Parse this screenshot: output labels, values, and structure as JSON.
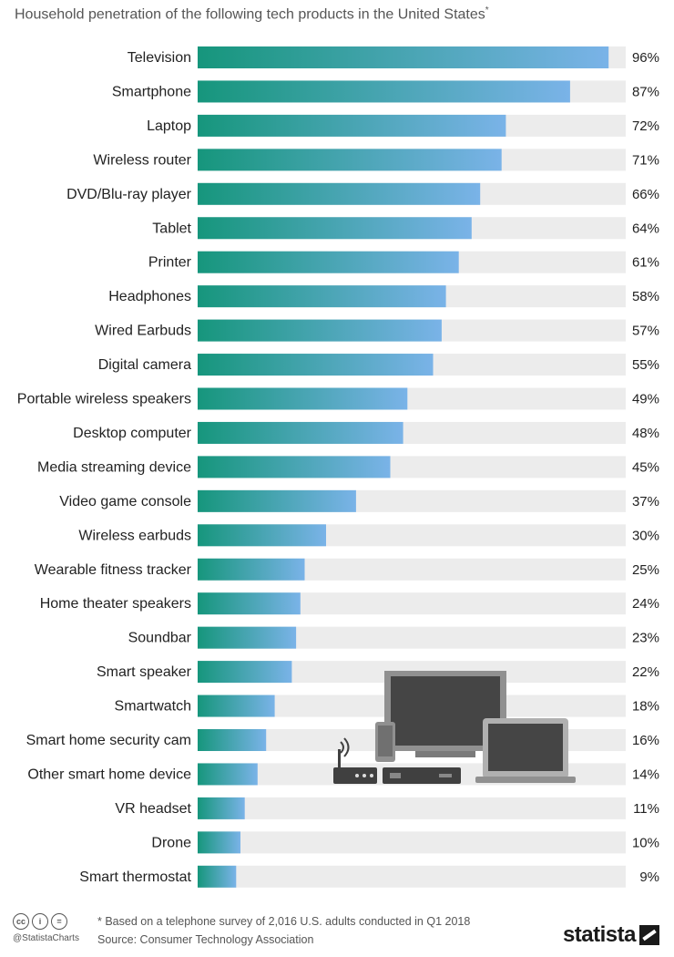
{
  "subtitle": "Household penetration of the following tech products in the United States",
  "subtitle_mark": "*",
  "chart_data": {
    "type": "bar",
    "orientation": "horizontal",
    "categories": [
      "Television",
      "Smartphone",
      "Laptop",
      "Wireless router",
      "DVD/Blu-ray player",
      "Tablet",
      "Printer",
      "Headphones",
      "Wired Earbuds",
      "Digital camera",
      "Portable wireless speakers",
      "Desktop computer",
      "Media streaming device",
      "Video game console",
      "Wireless earbuds",
      "Wearable fitness tracker",
      "Home theater speakers",
      "Soundbar",
      "Smart speaker",
      "Smartwatch",
      "Smart home security cam",
      "Other smart home device",
      "VR headset",
      "Drone",
      "Smart thermostat"
    ],
    "values": [
      96,
      87,
      72,
      71,
      66,
      64,
      61,
      58,
      57,
      55,
      49,
      48,
      45,
      37,
      30,
      25,
      24,
      23,
      22,
      18,
      16,
      14,
      11,
      10,
      9
    ],
    "value_labels": [
      "96%",
      "87%",
      "72%",
      "71%",
      "66%",
      "64%",
      "61%",
      "58%",
      "57%",
      "55%",
      "49%",
      "48%",
      "45%",
      "37%",
      "30%",
      "25%",
      "24%",
      "23%",
      "22%",
      "18%",
      "16%",
      "14%",
      "11%",
      "10%",
      "9%"
    ],
    "xlim": [
      0,
      100
    ],
    "grid": false,
    "colors": {
      "bar_start": "#16967c",
      "bar_end": "#7ab3e8",
      "track": "#ececec"
    }
  },
  "footer": {
    "note": "* Based on a telephone survey of 2,016 U.S. adults conducted in Q1 2018",
    "source": "Source: Consumer Technology Association",
    "handle": "@StatistaCharts",
    "brand": "statista"
  },
  "icons": [
    "cc-icon",
    "by-icon",
    "nd-icon",
    "devices-illustration"
  ]
}
